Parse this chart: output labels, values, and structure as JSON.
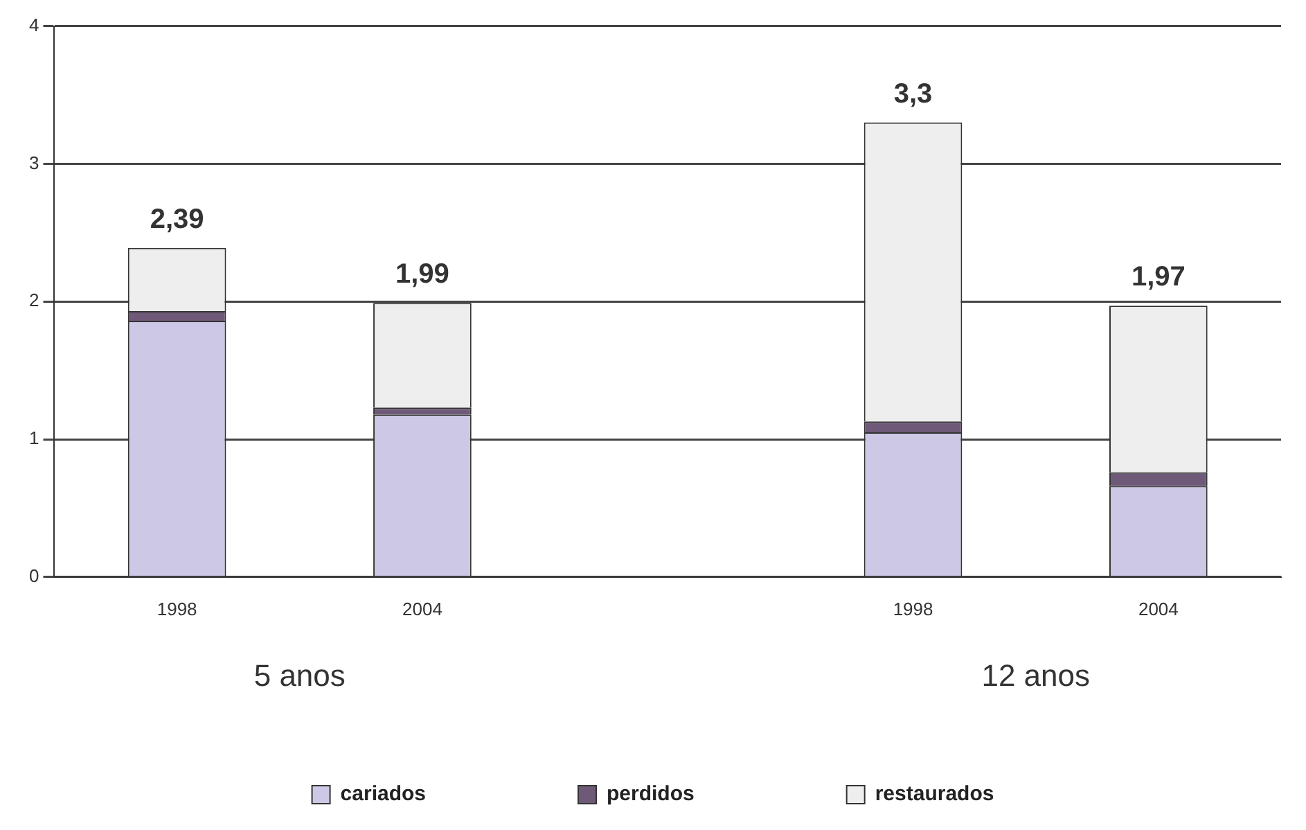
{
  "chart_data": {
    "type": "bar",
    "stacked": true,
    "categories": [
      "1998",
      "2004",
      null,
      "1998",
      "2004"
    ],
    "series": [
      {
        "name": "cariados",
        "color": "#ccc8e6",
        "values": [
          1.86,
          1.18,
          null,
          1.05,
          0.66
        ]
      },
      {
        "name": "perdidos",
        "color": "#6e5a78",
        "values": [
          0.07,
          0.05,
          null,
          0.08,
          0.1
        ]
      },
      {
        "name": "restaurados",
        "color": "#eeeeee",
        "values": [
          0.46,
          0.76,
          null,
          2.17,
          1.21
        ]
      }
    ],
    "totals": [
      "2,39",
      "1,99",
      null,
      "3,3",
      "1,97"
    ],
    "annotations": [
      "5 anos",
      "12 anos"
    ],
    "ylim": [
      0,
      4
    ],
    "yticks": [
      0,
      1,
      2,
      3,
      4
    ],
    "grid": "y",
    "legend": "bottom"
  }
}
